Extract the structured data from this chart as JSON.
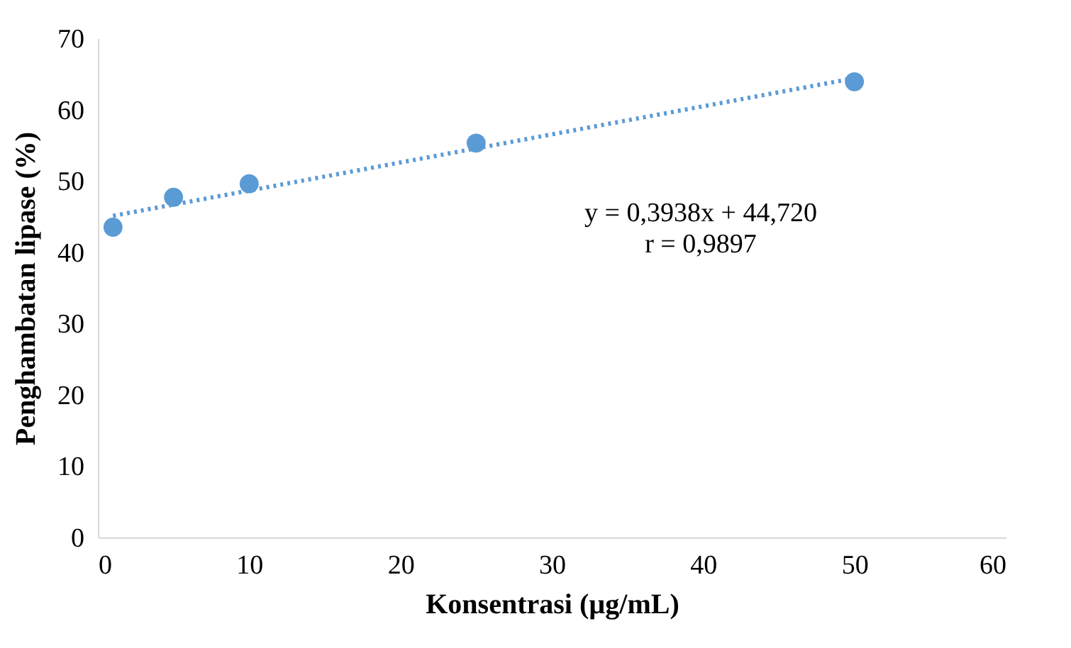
{
  "chart_data": {
    "type": "scatter",
    "xlabel": "Konsentrasi (µg/mL)",
    "ylabel": "Penghambatan lipase (%)",
    "x": [
      1,
      5,
      10,
      25,
      50
    ],
    "series": [
      {
        "color": "#5b9bd5",
        "marker": "circle",
        "values": [
          43.5,
          47.7,
          49.6,
          55.3,
          63.9
        ]
      },
      {
        "type": "line",
        "color": "#5b9bd5",
        "line_style": "dotted",
        "marker": "none",
        "x": [
          1,
          50
        ],
        "values": [
          45.1,
          64.4
        ]
      }
    ],
    "annotations": [
      "y = 0,3938x + 44,720",
      "r = 0,9897"
    ],
    "xlim": [
      0,
      60
    ],
    "xticks": [
      0,
      10,
      20,
      30,
      40,
      50,
      60
    ],
    "ylim": [
      0,
      70
    ],
    "yticks": [
      0,
      10,
      20,
      30,
      40,
      50,
      60,
      70
    ],
    "grid": false
  }
}
